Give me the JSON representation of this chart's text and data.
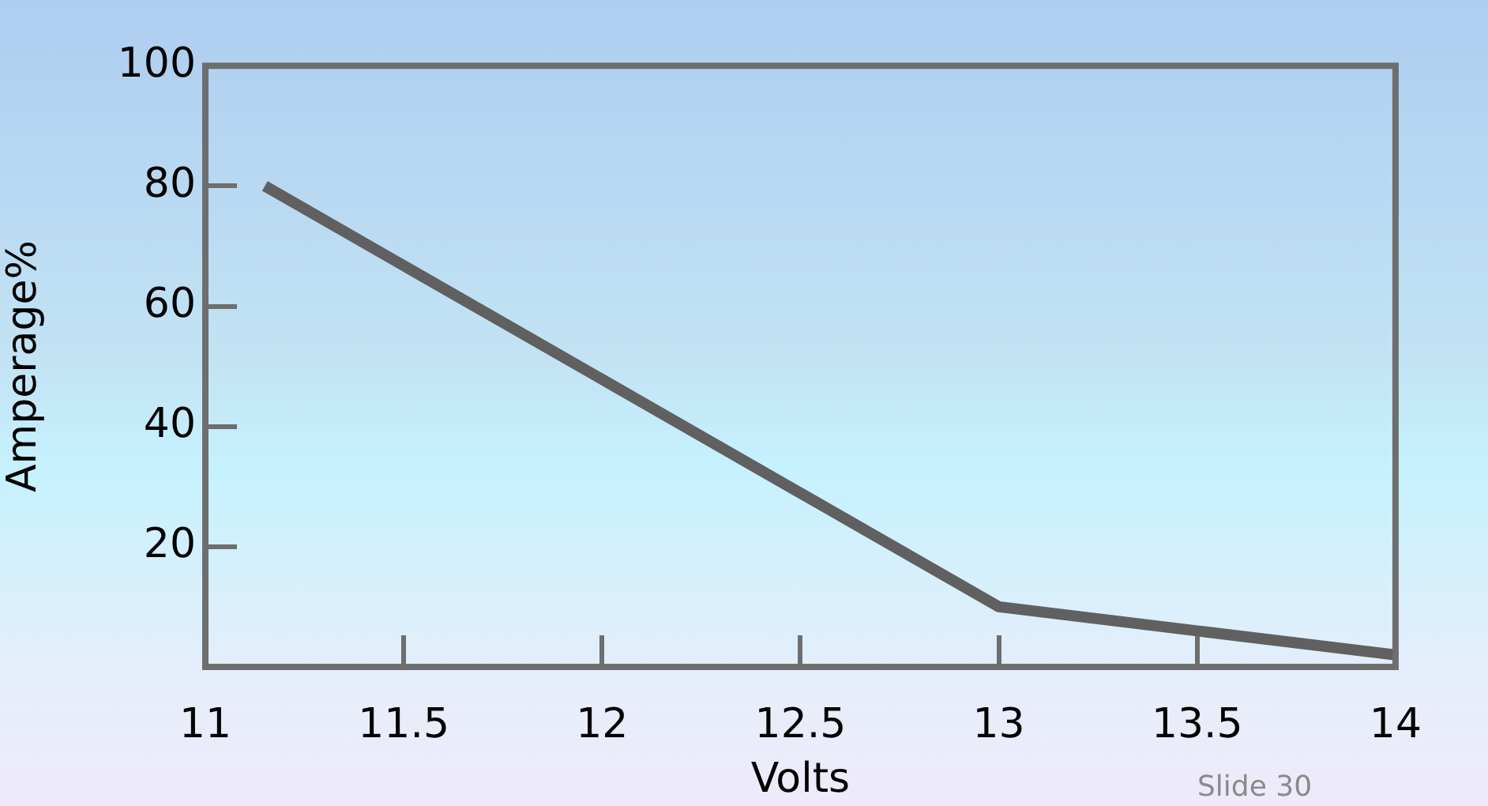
{
  "chart_data": {
    "type": "line",
    "xlabel": "Volts",
    "ylabel": "Amperage%",
    "series": [
      {
        "color": "#606060",
        "x": [
          11.15,
          13,
          13.5,
          14
        ],
        "values": [
          80,
          10,
          6,
          2
        ]
      }
    ],
    "xlim": [
      11,
      14
    ],
    "xticks": [
      11,
      11.5,
      12,
      12.5,
      13,
      13.5,
      14
    ],
    "ylim": [
      0,
      100
    ],
    "yticks": [
      20,
      40,
      60,
      80,
      100
    ],
    "grid": false,
    "legend": false,
    "marker": "none",
    "line_style": "solid",
    "annotations": [
      "Slide 30"
    ]
  }
}
